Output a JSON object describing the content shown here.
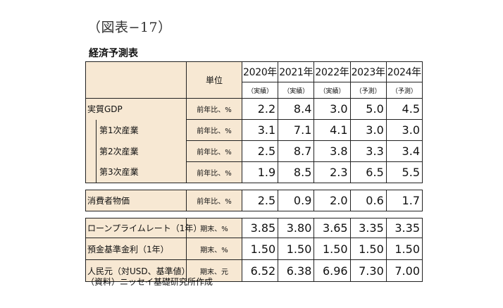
{
  "figure_label": "（図表−17）",
  "table_title": "経済予測表",
  "header": {
    "unit_label": "単位",
    "years": [
      "2020年",
      "2021年",
      "2022年",
      "2023年",
      "2024年"
    ],
    "kinds": [
      "（実績）",
      "（実績）",
      "（実績）",
      "（予測）",
      "（予測）"
    ]
  },
  "rows": [
    {
      "name": "実質GDP",
      "unit": "前年比、%",
      "values": [
        "2.2",
        "8.4",
        "3.0",
        "5.0",
        "4.5"
      ]
    },
    {
      "name": "第1次産業",
      "unit": "前年比、%",
      "values": [
        "3.1",
        "7.1",
        "4.1",
        "3.0",
        "3.0"
      ]
    },
    {
      "name": "第2次産業",
      "unit": "前年比、%",
      "values": [
        "2.5",
        "8.7",
        "3.8",
        "3.3",
        "3.4"
      ]
    },
    {
      "name": "第3次産業",
      "unit": "前年比、%",
      "values": [
        "1.9",
        "8.5",
        "2.3",
        "6.5",
        "5.5"
      ]
    },
    {
      "name": "消費者物価",
      "unit": "前年比、%",
      "values": [
        "2.5",
        "0.9",
        "2.0",
        "0.6",
        "1.7"
      ]
    },
    {
      "name": "ローンプライムレート（1年）",
      "unit": "期末、%",
      "values": [
        "3.85",
        "3.80",
        "3.65",
        "3.35",
        "3.35"
      ]
    },
    {
      "name": "預金基準金利（1年）",
      "unit": "期末、%",
      "values": [
        "1.50",
        "1.50",
        "1.50",
        "1.50",
        "1.50"
      ]
    },
    {
      "name": "人民元（対USD、基準値）",
      "unit": "期末、元",
      "values": [
        "6.52",
        "6.38",
        "6.96",
        "7.30",
        "7.00"
      ]
    }
  ],
  "source": "（資料）ニッセイ基礎研究所作成",
  "colors": {
    "label_fill": "#f7e8d3",
    "border": "#222222"
  }
}
